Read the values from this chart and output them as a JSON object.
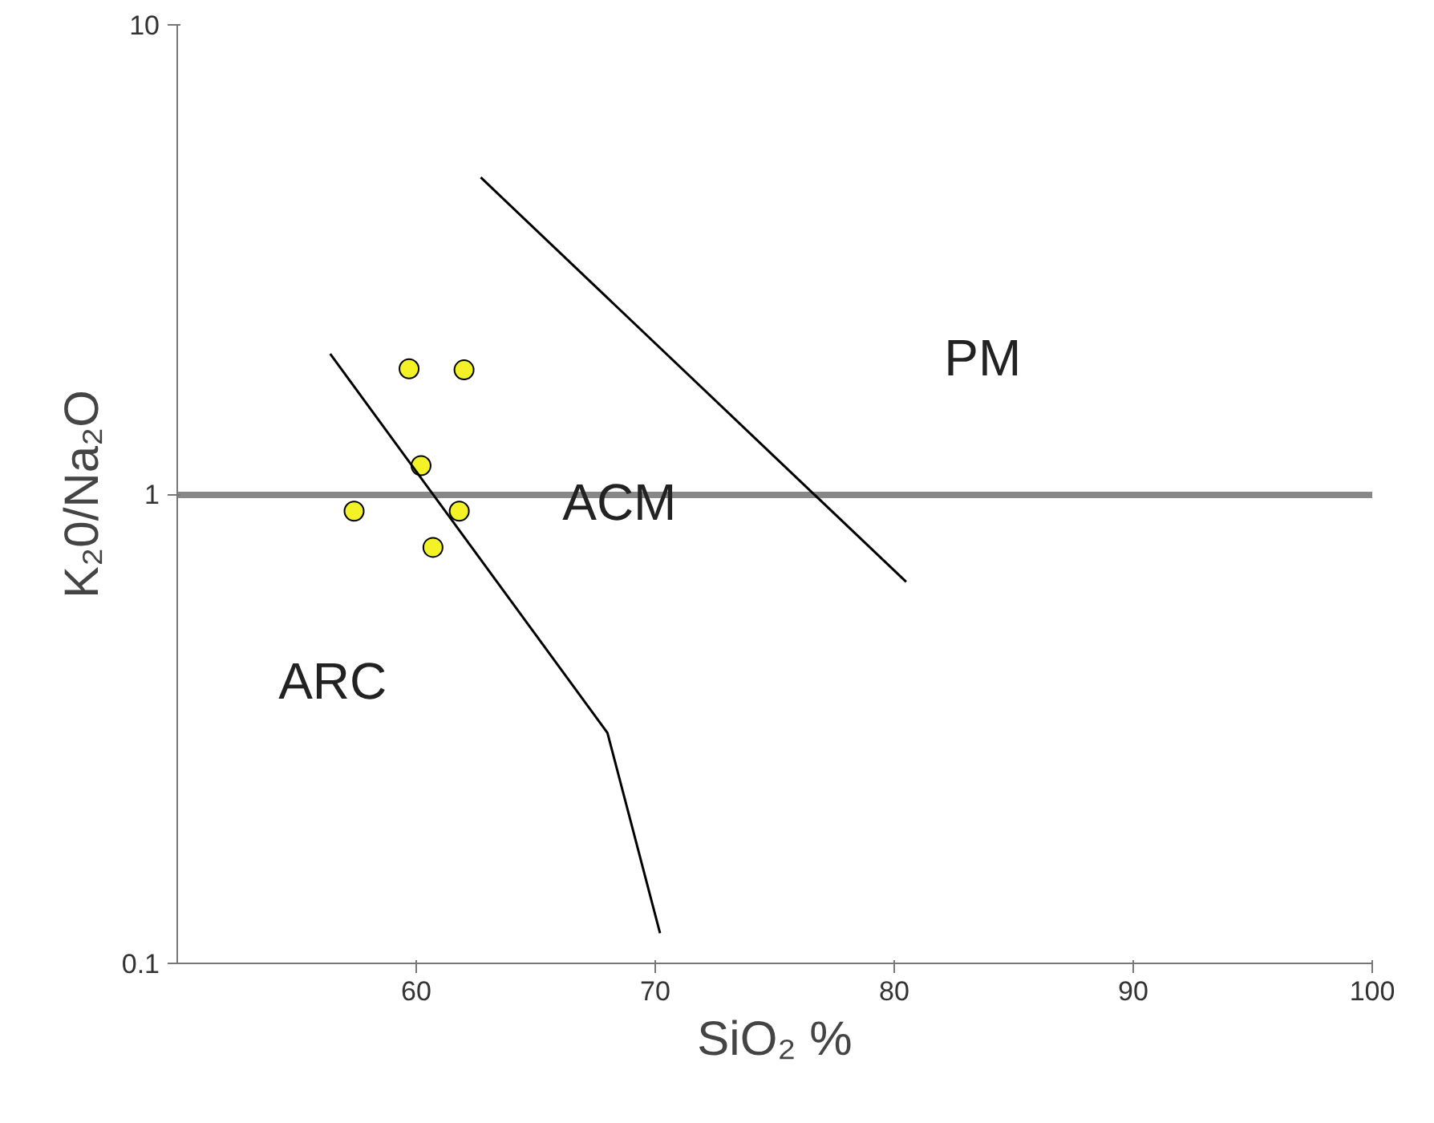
{
  "chart_data": {
    "type": "scatter",
    "xlabel": "SiO₂ %",
    "ylabel": "K₂0/Na₂O",
    "xlim": [
      50,
      100
    ],
    "ylim": [
      0.1,
      10
    ],
    "xticks": [
      60,
      70,
      80,
      90,
      100
    ],
    "yticks": [
      0.1,
      1,
      10
    ],
    "log": "y",
    "grid": "y",
    "series": [
      {
        "color": "#f2f226",
        "marker": "circle",
        "x": [
          59.7,
          62.0,
          60.2,
          57.4,
          61.8,
          60.7
        ],
        "values": [
          1.85,
          1.84,
          1.15,
          0.92,
          0.92,
          0.77
        ]
      },
      {
        "type": "line",
        "color": "#000000",
        "x": [
          56.4,
          68.0,
          70.2
        ],
        "values": [
          1.99,
          0.31,
          0.116
        ]
      },
      {
        "type": "line",
        "color": "#000000",
        "x": [
          62.7,
          80.5
        ],
        "values": [
          4.73,
          0.65
        ]
      }
    ],
    "annotations": [
      "ARC",
      "ACM",
      "PM"
    ]
  }
}
